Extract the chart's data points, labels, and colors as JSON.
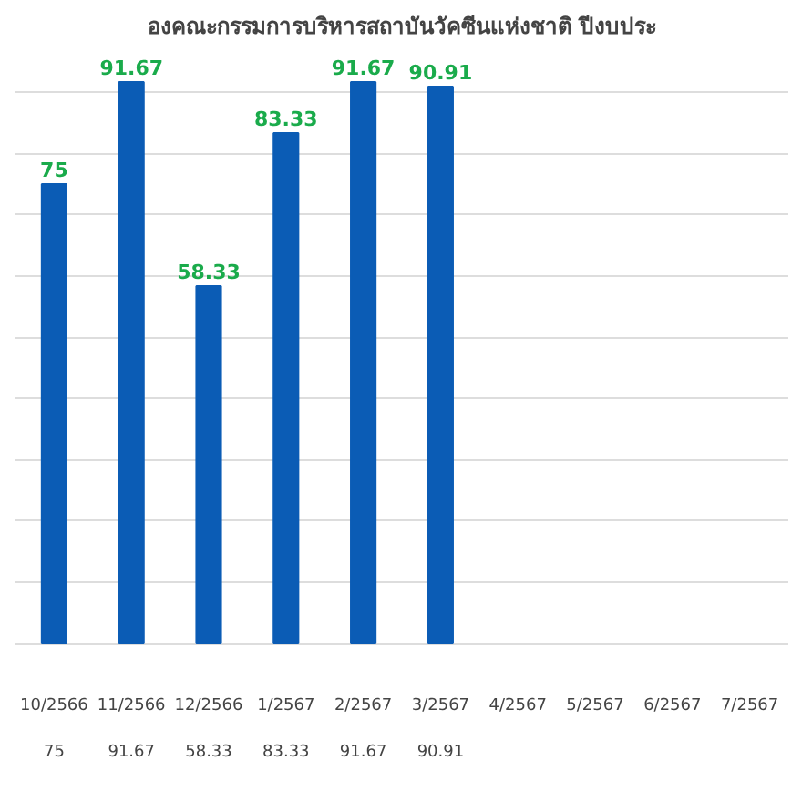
{
  "chart_data": {
    "type": "bar",
    "title": "องคณะกรรมการบริหารสถาบันวัคซีนแห่งชาติ ปีงบประ",
    "categories": [
      "10/2566",
      "11/2566",
      "12/2566",
      "1/2567",
      "2/2567",
      "3/2567",
      "4/2567",
      "5/2567",
      "6/2567",
      "7/2567"
    ],
    "values": [
      75,
      91.67,
      58.33,
      83.33,
      91.67,
      90.91,
      null,
      null,
      null,
      null
    ],
    "color": "#0b5cb5",
    "yticks": [
      {
        "value": 0,
        "label": null
      },
      {
        "value": 10,
        "label": null
      },
      {
        "value": 20,
        "label": null
      },
      {
        "value": 30,
        "label": null
      },
      {
        "value": 40,
        "label": null
      },
      {
        "value": 50,
        "label": null
      },
      {
        "value": 60,
        "label": null
      },
      {
        "value": 70,
        "label": null
      },
      {
        "value": 80,
        "label": null
      },
      {
        "value": 90,
        "label": null
      }
    ],
    "annotations": [
      "75",
      "91.67",
      "58.33",
      "83.33",
      "91.67",
      "90.91"
    ],
    "tick_labels": "x",
    "grid": "y",
    "data_labels": true
  }
}
